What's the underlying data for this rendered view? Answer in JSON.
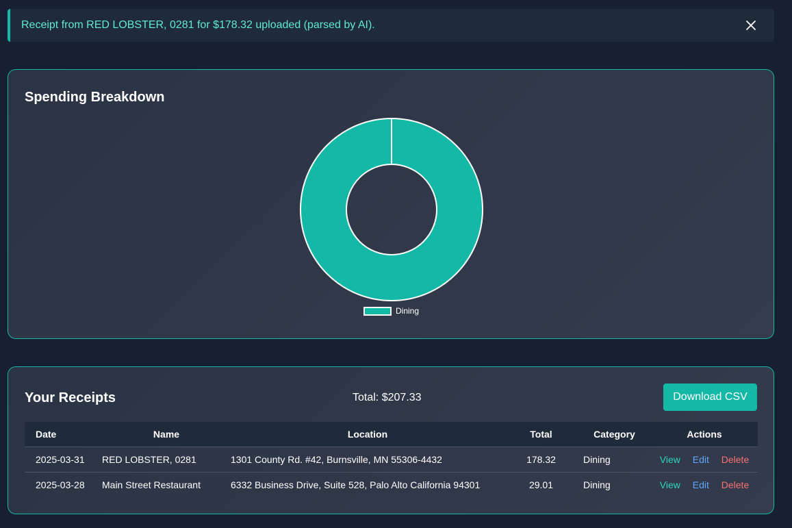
{
  "alert": {
    "message": "Receipt from RED LOBSTER, 0281 for $178.32 uploaded (parsed by AI).",
    "close_icon": "close-icon"
  },
  "chart": {
    "title": "Spending Breakdown",
    "chart_data": {
      "type": "pie",
      "variant": "donut",
      "categories": [
        "Dining"
      ],
      "values": [
        207.33
      ],
      "colors": [
        "#14b8a6"
      ],
      "legend": "bottom"
    }
  },
  "receipts": {
    "title": "Your Receipts",
    "total_label": "Total: $207.33",
    "download_label": "Download CSV",
    "columns": [
      "Date",
      "Name",
      "Location",
      "Total",
      "Category",
      "Actions"
    ],
    "rows": [
      {
        "date": "2025-03-31",
        "name": "RED LOBSTER, 0281",
        "location": "1301 County Rd. #42, Burnsville, MN 55306-4432",
        "total": "178.32",
        "category": "Dining",
        "actions": {
          "view": "View",
          "edit": "Edit",
          "delete": "Delete"
        }
      },
      {
        "date": "2025-03-28",
        "name": "Main Street Restaurant",
        "location": "6332 Business Drive, Suite 528, Palo Alto California 94301",
        "total": "29.01",
        "category": "Dining",
        "actions": {
          "view": "View",
          "edit": "Edit",
          "delete": "Delete"
        }
      }
    ]
  },
  "colors": {
    "accent": "#14b8a6",
    "view": "#2dd4bf",
    "edit": "#60a5fa",
    "delete": "#f87171",
    "background": "#172033"
  }
}
